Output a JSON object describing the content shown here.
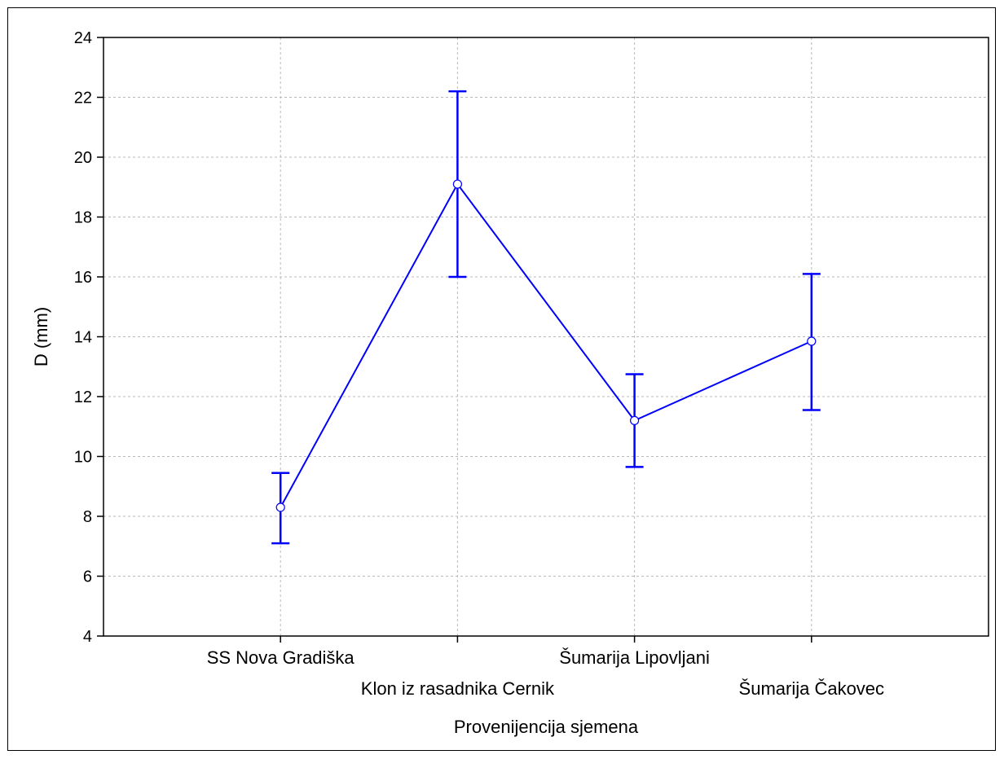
{
  "chart_data": {
    "type": "line",
    "xlabel": "Provenijencija sjemena",
    "ylabel": "D (mm)",
    "ylim": [
      4,
      24
    ],
    "yticks": [
      4,
      6,
      8,
      10,
      12,
      14,
      16,
      18,
      20,
      22,
      24
    ],
    "grid": true,
    "categories": [
      "SS Nova Gradiška",
      "Klon iz rasadnika Cernik",
      "Šumarija Lipovljani",
      "Šumarija Čakovec"
    ],
    "values": [
      8.3,
      19.1,
      11.2,
      13.85
    ],
    "error_low": [
      7.1,
      16.0,
      9.65,
      11.55
    ],
    "error_high": [
      9.45,
      22.2,
      12.75,
      16.1
    ],
    "line_color": "#0000ff"
  }
}
